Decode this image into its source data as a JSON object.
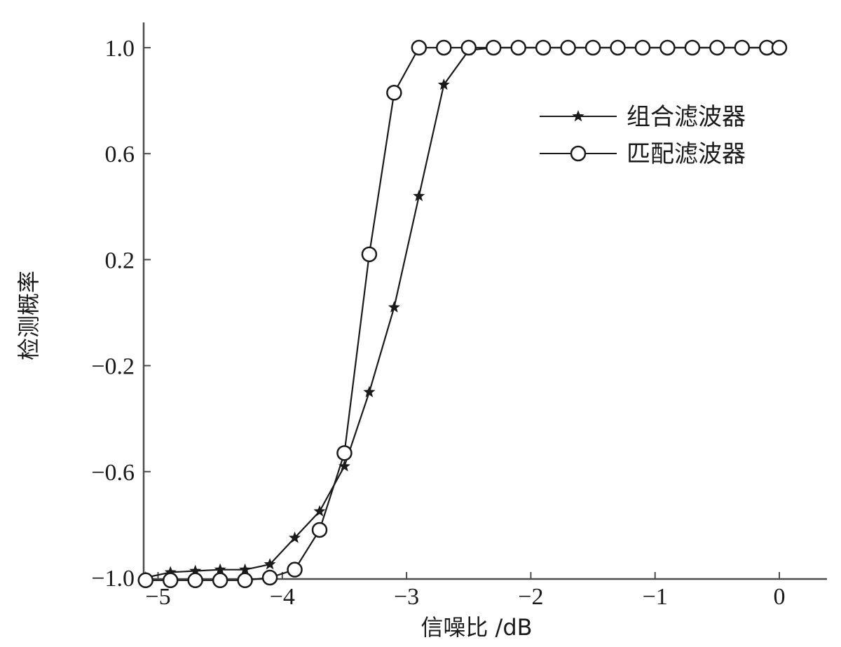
{
  "chart_data": {
    "type": "line",
    "xlabel": "信噪比 /dB",
    "ylabel": "检测概率",
    "xlim": [
      -5.1,
      0.4
    ],
    "ylim": [
      -1.0,
      1.1
    ],
    "xticks": [
      -5,
      -4,
      -3,
      -2,
      -1,
      0
    ],
    "xtick_labels": [
      "−5",
      "−4",
      "−3",
      "−2",
      "−1",
      "0"
    ],
    "yticks": [
      -1.0,
      -0.6,
      -0.2,
      0.2,
      0.6,
      1.0
    ],
    "ytick_labels": [
      "−1.0",
      "−0.6",
      "−0.2",
      "0.2",
      "0.6",
      "1.0"
    ],
    "grid": false,
    "legend_position": "top-right",
    "x": [
      -5.1,
      -4.9,
      -4.7,
      -4.5,
      -4.3,
      -4.1,
      -3.9,
      -3.7,
      -3.5,
      -3.3,
      -3.1,
      -2.9,
      -2.7,
      -2.5,
      -2.3,
      -2.1,
      -1.9,
      -1.7,
      -1.5,
      -1.3,
      -1.1,
      -0.9,
      -0.7,
      -0.5,
      -0.3,
      -0.1,
      0.0
    ],
    "series": [
      {
        "name": "组合滤波器",
        "marker": "star",
        "values": [
          -1.0,
          -0.98,
          -0.975,
          -0.97,
          -0.97,
          -0.95,
          -0.85,
          -0.75,
          -0.58,
          -0.3,
          0.02,
          0.44,
          0.86,
          0.99,
          1.0,
          1.0,
          1.0,
          1.0,
          1.0,
          1.0,
          1.0,
          1.0,
          1.0,
          1.0,
          1.0,
          1.0,
          1.0
        ]
      },
      {
        "name": "匹配滤波器",
        "marker": "circle",
        "values": [
          -1.01,
          -1.01,
          -1.01,
          -1.01,
          -1.01,
          -1.0,
          -0.97,
          -0.82,
          -0.53,
          0.22,
          0.83,
          1.0,
          1.0,
          1.0,
          1.0,
          1.0,
          1.0,
          1.0,
          1.0,
          1.0,
          1.0,
          1.0,
          1.0,
          1.0,
          1.0,
          1.0,
          1.0
        ]
      }
    ]
  },
  "colors": {
    "line": "#1a1a1a",
    "axis": "#4d4d4d",
    "background": "#ffffff"
  }
}
